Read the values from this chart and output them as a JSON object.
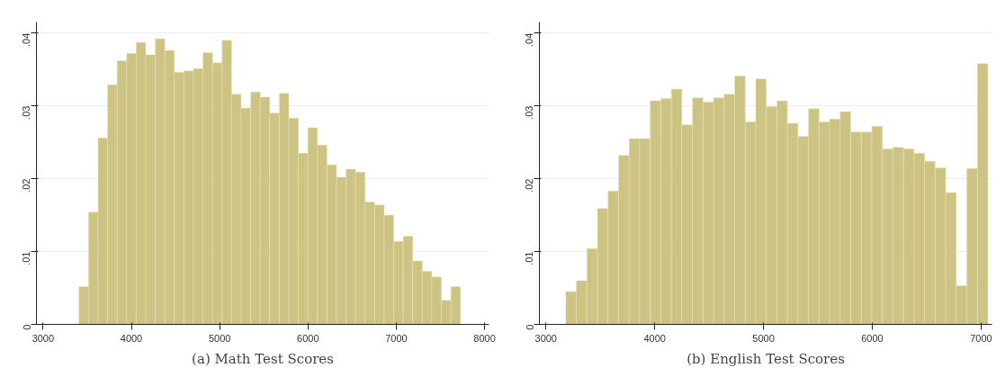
{
  "chart_data": [
    {
      "type": "histogram",
      "title": "(a) Math Test Scores",
      "color": "#cdc383",
      "bins": [
        3407,
        3515,
        3623,
        3731,
        3839,
        3947,
        4055,
        4163,
        4271,
        4379,
        4487,
        4595,
        4703,
        4811,
        4919,
        5027,
        5135,
        5243,
        5351,
        5459,
        5567,
        5675,
        5783,
        5891,
        5999,
        6107,
        6215,
        6323,
        6431,
        6539,
        6647,
        6755,
        6863,
        6971,
        7079,
        7187,
        7295,
        7403,
        7511,
        7619,
        7727
      ],
      "values": [
        0.0052,
        0.0154,
        0.0256,
        0.0329,
        0.0362,
        0.0372,
        0.0387,
        0.037,
        0.0392,
        0.0376,
        0.0346,
        0.0348,
        0.0351,
        0.0373,
        0.0359,
        0.039,
        0.0316,
        0.0297,
        0.0319,
        0.0312,
        0.029,
        0.0317,
        0.0283,
        0.0235,
        0.027,
        0.0246,
        0.0219,
        0.0202,
        0.0213,
        0.0209,
        0.0168,
        0.0164,
        0.015,
        0.0114,
        0.0121,
        0.0087,
        0.0073,
        0.0065,
        0.0033,
        0.0052
      ],
      "xlim": [
        2925,
        8050
      ],
      "ylim": [
        0,
        0.0415
      ],
      "xticks": [
        3000,
        4000,
        5000,
        6000,
        7000,
        8000
      ],
      "yticks": [
        {
          "value": 0,
          "label": "0"
        },
        {
          "value": 0.01,
          "label": ".01"
        },
        {
          "value": 0.02,
          "label": ".02"
        },
        {
          "value": 0.03,
          "label": ".03"
        },
        {
          "value": 0.04,
          "label": ".04"
        }
      ],
      "grid": "y"
    },
    {
      "type": "histogram",
      "title": "(b) English Test Scores",
      "color": "#cdc383",
      "bins": [
        3183,
        3280,
        3377,
        3474,
        3571,
        3668,
        3765,
        3862,
        3959,
        4056,
        4153,
        4250,
        4347,
        4444,
        4541,
        4638,
        4735,
        4832,
        4929,
        5026,
        5123,
        5220,
        5317,
        5414,
        5511,
        5608,
        5705,
        5802,
        5899,
        5996,
        6093,
        6190,
        6287,
        6384,
        6481,
        6578,
        6675,
        6772,
        6869,
        6966,
        7063
      ],
      "values": [
        0.0045,
        0.006,
        0.0104,
        0.0159,
        0.0183,
        0.0232,
        0.0255,
        0.0255,
        0.0307,
        0.031,
        0.0323,
        0.0274,
        0.0311,
        0.0305,
        0.0311,
        0.0316,
        0.0341,
        0.0278,
        0.0337,
        0.0299,
        0.0307,
        0.0276,
        0.0258,
        0.0296,
        0.0278,
        0.0282,
        0.0292,
        0.0264,
        0.0264,
        0.0272,
        0.0241,
        0.0243,
        0.0241,
        0.0235,
        0.0224,
        0.0215,
        0.0181,
        0.0053,
        0.0214,
        0.0358
      ],
      "xlim": [
        2940,
        7100
      ],
      "ylim": [
        0,
        0.0415
      ],
      "xticks": [
        3000,
        4000,
        5000,
        6000,
        7000
      ],
      "yticks": [
        {
          "value": 0,
          "label": "0"
        },
        {
          "value": 0.01,
          "label": ".01"
        },
        {
          "value": 0.02,
          "label": ".02"
        },
        {
          "value": 0.03,
          "label": ".03"
        },
        {
          "value": 0.04,
          "label": ".04"
        }
      ],
      "grid": "y"
    }
  ]
}
